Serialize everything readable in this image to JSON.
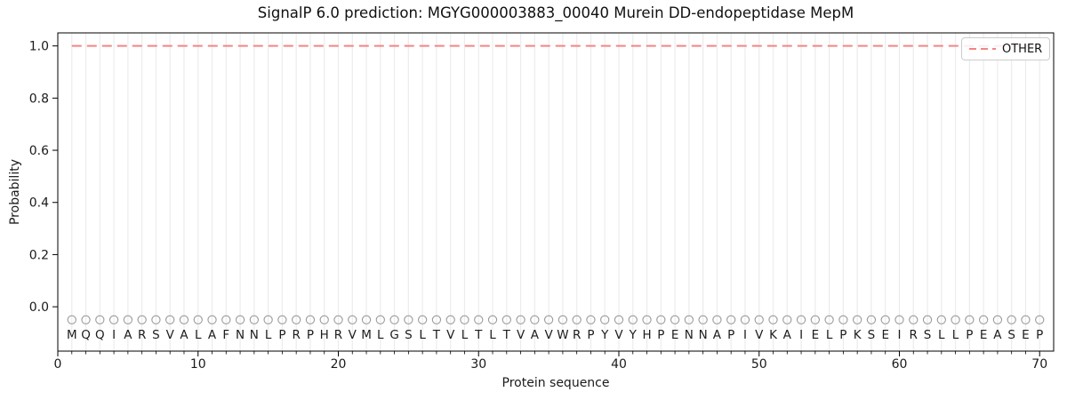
{
  "chart_data": {
    "type": "line",
    "title": "SignalP 6.0 prediction: MGYG000003883_00040 Murein DD-endopeptidase MepM",
    "xlabel": "Protein sequence",
    "ylabel": "Probability",
    "xlim": [
      0,
      71
    ],
    "ylim": [
      -0.17,
      1.05
    ],
    "grid": {
      "vertical_per_residue": true,
      "color": "#ececec"
    },
    "x_ticks": [
      {
        "value": 0,
        "label": "0"
      },
      {
        "value": 10,
        "label": "10"
      },
      {
        "value": 20,
        "label": "20"
      },
      {
        "value": 30,
        "label": "30"
      },
      {
        "value": 40,
        "label": "40"
      },
      {
        "value": 50,
        "label": "50"
      },
      {
        "value": 60,
        "label": "60"
      },
      {
        "value": 70,
        "label": "70"
      }
    ],
    "y_ticks": [
      {
        "value": 0.0,
        "label": "0.0"
      },
      {
        "value": 0.2,
        "label": "0.2"
      },
      {
        "value": 0.4,
        "label": "0.4"
      },
      {
        "value": 0.6,
        "label": "0.6"
      },
      {
        "value": 0.8,
        "label": "0.8"
      },
      {
        "value": 1.0,
        "label": "1.0"
      }
    ],
    "legend": {
      "location": "upper right",
      "entries": [
        {
          "label": "OTHER",
          "color": "#f48585",
          "linestyle": "dashed"
        }
      ]
    },
    "series": [
      {
        "name": "OTHER",
        "linestyle": "dashed",
        "color": "#f48585",
        "x_start": 1,
        "x_end": 70,
        "y_value": 1.0
      }
    ],
    "sequence_track": {
      "residues": [
        "M",
        "Q",
        "Q",
        "I",
        "A",
        "R",
        "S",
        "V",
        "A",
        "L",
        "A",
        "F",
        "N",
        "N",
        "L",
        "P",
        "R",
        "P",
        "H",
        "R",
        "V",
        "M",
        "L",
        "G",
        "S",
        "L",
        "T",
        "V",
        "L",
        "T",
        "L",
        "T",
        "V",
        "A",
        "V",
        "W",
        "R",
        "P",
        "Y",
        "V",
        "Y",
        "H",
        "P",
        "E",
        "N",
        "N",
        "A",
        "P",
        "I",
        "V",
        "K",
        "A",
        "I",
        "E",
        "L",
        "P",
        "K",
        "S",
        "E",
        "I",
        "R",
        "S",
        "L",
        "L",
        "P",
        "E",
        "A",
        "S",
        "E",
        "P"
      ],
      "marker": {
        "shape": "open-circle",
        "y_value": -0.05,
        "color": "#9a9a9a"
      },
      "letter_color": "#1c1c1c"
    }
  }
}
